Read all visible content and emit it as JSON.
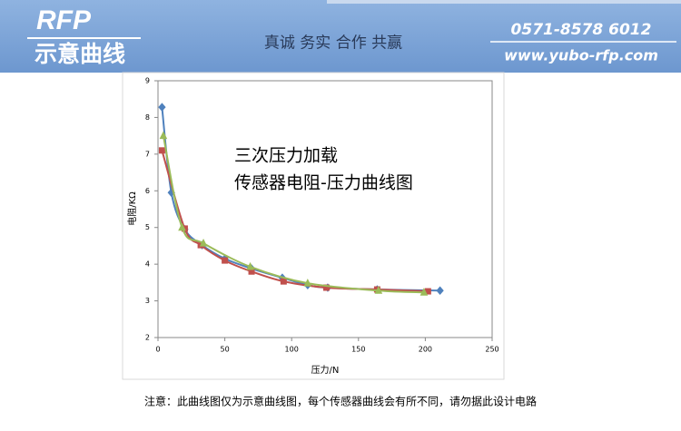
{
  "header": {
    "logo": "RFP",
    "subtitle": "示意曲线",
    "slogan": "真诚 务实 合作 共赢",
    "phone": "0571-8578 6012",
    "website": "www.yubo-rfp.com"
  },
  "chart_data": {
    "type": "line",
    "annotation": [
      "三次压力加载",
      "传感器电阻-压力曲线图"
    ],
    "x_label": "压力/N",
    "y_label": "电阻/KΩ",
    "xlim": [
      0,
      250
    ],
    "xticks": [
      0,
      50,
      100,
      150,
      200,
      250
    ],
    "ylim": [
      2,
      9
    ],
    "yticks": [
      2,
      3,
      4,
      5,
      6,
      7,
      8,
      9
    ],
    "series": [
      {
        "color": "#4f81bd",
        "marker": "diamond",
        "x": [
          3,
          10,
          20,
          33,
          50,
          70,
          93,
          112,
          127,
          164,
          211
        ],
        "values": [
          8.28,
          5.95,
          4.95,
          4.52,
          4.15,
          3.88,
          3.63,
          3.43,
          3.36,
          3.31,
          3.28
        ]
      },
      {
        "color": "#c0504d",
        "marker": "square",
        "x": [
          3,
          20,
          32,
          50,
          70,
          94,
          126,
          164,
          202
        ],
        "values": [
          7.1,
          4.97,
          4.52,
          4.1,
          3.8,
          3.53,
          3.36,
          3.31,
          3.26
        ]
      },
      {
        "color": "#9bbb59",
        "marker": "triangle",
        "x": [
          4,
          18,
          34,
          69,
          112,
          165,
          199
        ],
        "values": [
          7.5,
          5.0,
          4.57,
          3.93,
          3.48,
          3.28,
          3.23
        ]
      }
    ]
  },
  "footer": {
    "note": "注意：此曲线图仅为示意曲线图，每个传感器曲线会有所不同，请勿据此设计电路"
  }
}
